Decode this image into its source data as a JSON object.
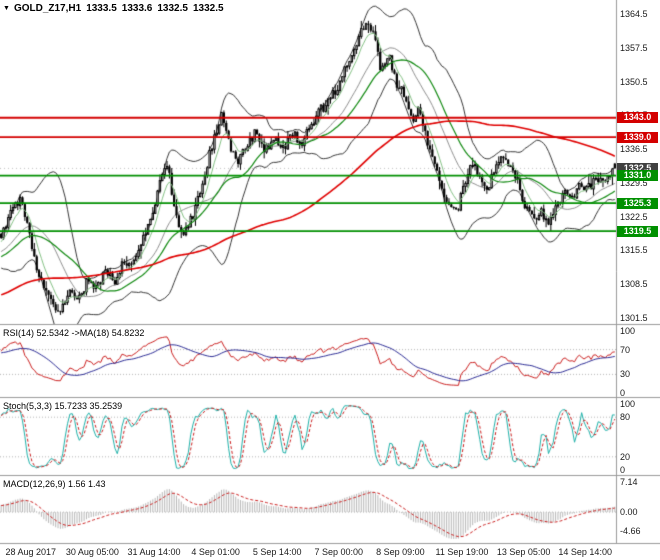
{
  "header": {
    "arrow": "▼",
    "symbol": "GOLD_Z17,H1",
    "open": "1333.5",
    "high": "1333.6",
    "low": "1332.5",
    "close": "1332.5"
  },
  "colors": {
    "background": "#ffffff",
    "bullish_candle": "#ffffff",
    "bearish_candle": "#000000",
    "candle_outline": "#000000",
    "bollinger": "#383838",
    "ma_fast_light_green": "#85c285",
    "ma_green": "#128a12",
    "ma_red": "#e00000",
    "resistance": "#d40000",
    "support": "#009000",
    "rsi_line": "#cc2020",
    "rsi_ma_line": "#2c2c96",
    "stoch_k": "#20b2aa",
    "stoch_d": "#cc2020",
    "macd_histogram": "#b8b8b8",
    "macd_signal": "#cc2020",
    "axis_text": "#1a1a1a",
    "separator": "#9a9a9a"
  },
  "chart_data": {
    "type": "candlestick",
    "title": "GOLD_Z17,H1",
    "symbol": "GOLD_Z17",
    "timeframe": "H1",
    "main_axis": {
      "min": 1301.5,
      "max": 1364.5,
      "step": 7.0,
      "ticks": [
        "1364.5",
        "1357.5",
        "1350.5",
        "1343.5",
        "1336.5",
        "1329.5",
        "1322.5",
        "1315.5",
        "1308.5",
        "1301.5"
      ],
      "current_price": "1332.5"
    },
    "levels": {
      "resistance": [
        1343.0,
        1339.0
      ],
      "support": [
        1331.0,
        1325.3,
        1319.5
      ]
    },
    "last_candle": {
      "open": 1333.5,
      "high": 1333.6,
      "low": 1332.5,
      "close": 1332.5
    },
    "bars": 260,
    "warmup_bars": 130,
    "seed": 13,
    "warmup_path": [
      [
        -0.5,
        1302.0
      ],
      [
        -0.4,
        1297.0
      ],
      [
        -0.325,
        1304.0
      ],
      [
        -0.25,
        1300.0
      ],
      [
        -0.175,
        1308.0
      ],
      [
        -0.1,
        1312.0
      ],
      [
        -0.02,
        1316.0
      ]
    ],
    "price_path": [
      [
        0.0,
        1318.5
      ],
      [
        0.015,
        1323.0
      ],
      [
        0.03,
        1326.0
      ],
      [
        0.045,
        1320.0
      ],
      [
        0.055,
        1313.0
      ],
      [
        0.07,
        1307.0
      ],
      [
        0.085,
        1304.5
      ],
      [
        0.095,
        1303.0
      ],
      [
        0.11,
        1306.5
      ],
      [
        0.125,
        1305.0
      ],
      [
        0.14,
        1309.0
      ],
      [
        0.155,
        1307.5
      ],
      [
        0.17,
        1311.0
      ],
      [
        0.185,
        1309.0
      ],
      [
        0.2,
        1313.0
      ],
      [
        0.215,
        1312.0
      ],
      [
        0.23,
        1318.0
      ],
      [
        0.245,
        1323.0
      ],
      [
        0.26,
        1330.0
      ],
      [
        0.27,
        1334.0
      ],
      [
        0.28,
        1326.0
      ],
      [
        0.29,
        1321.0
      ],
      [
        0.3,
        1319.0
      ],
      [
        0.315,
        1323.5
      ],
      [
        0.33,
        1330.0
      ],
      [
        0.345,
        1338.0
      ],
      [
        0.36,
        1343.5
      ],
      [
        0.372,
        1337.0
      ],
      [
        0.385,
        1333.5
      ],
      [
        0.4,
        1337.5
      ],
      [
        0.415,
        1340.0
      ],
      [
        0.43,
        1336.0
      ],
      [
        0.445,
        1338.5
      ],
      [
        0.46,
        1336.5
      ],
      [
        0.475,
        1339.5
      ],
      [
        0.49,
        1338.0
      ],
      [
        0.505,
        1341.5
      ],
      [
        0.52,
        1344.5
      ],
      [
        0.535,
        1346.5
      ],
      [
        0.55,
        1350.0
      ],
      [
        0.565,
        1354.0
      ],
      [
        0.58,
        1359.0
      ],
      [
        0.596,
        1363.0
      ],
      [
        0.608,
        1359.5
      ],
      [
        0.62,
        1352.5
      ],
      [
        0.632,
        1356.0
      ],
      [
        0.645,
        1350.0
      ],
      [
        0.657,
        1347.5
      ],
      [
        0.668,
        1342.5
      ],
      [
        0.68,
        1344.5
      ],
      [
        0.692,
        1339.0
      ],
      [
        0.705,
        1334.0
      ],
      [
        0.718,
        1328.5
      ],
      [
        0.73,
        1325.5
      ],
      [
        0.742,
        1323.5
      ],
      [
        0.755,
        1329.0
      ],
      [
        0.768,
        1333.5
      ],
      [
        0.78,
        1331.0
      ],
      [
        0.792,
        1328.0
      ],
      [
        0.805,
        1332.5
      ],
      [
        0.818,
        1334.5
      ],
      [
        0.83,
        1333.0
      ],
      [
        0.842,
        1329.5
      ],
      [
        0.855,
        1324.0
      ],
      [
        0.868,
        1321.5
      ],
      [
        0.88,
        1323.5
      ],
      [
        0.892,
        1321.0
      ],
      [
        0.905,
        1324.5
      ],
      [
        0.918,
        1327.5
      ],
      [
        0.93,
        1326.0
      ],
      [
        0.942,
        1329.5
      ],
      [
        0.955,
        1328.0
      ],
      [
        0.968,
        1330.5
      ],
      [
        0.98,
        1329.5
      ],
      [
        0.99,
        1331.5
      ],
      [
        1.0,
        1332.5
      ]
    ],
    "overlays": {
      "bollinger_period": 20,
      "bollinger_dev": 2,
      "ma_red_period": 110,
      "ma_green_period": 30,
      "ma_light_period": 7
    },
    "indicators": {
      "rsi": {
        "label": "RSI(14) 52.5342 ->MA(18) 54.8232",
        "period": 14,
        "ma_period": 18,
        "value": 52.5342,
        "ma_value": 54.8232,
        "levels": [
          70,
          30
        ],
        "range": [
          0,
          100
        ],
        "ticks": [
          "100",
          "70",
          "30",
          "0"
        ]
      },
      "stoch": {
        "label": "Stoch(5,3,3) 15.7233 35.2539",
        "k_period": 5,
        "d_period": 3,
        "slowing": 3,
        "value_k": 15.7233,
        "value_d": 35.2539,
        "levels": [
          80,
          20
        ],
        "range": [
          0,
          100
        ],
        "ticks": [
          "100",
          "80",
          "20",
          "0"
        ]
      },
      "macd": {
        "label": "MACD(12,26,9) 1.56 1.43",
        "fast": 12,
        "slow": 26,
        "signal": 9,
        "value": 1.56,
        "signal_value": 1.43,
        "ticks": [
          {
            "text": "7.14",
            "value": 7.14
          },
          {
            "text": "0.00",
            "value": 0.0
          },
          {
            "text": "-4.66",
            "value": -4.66
          }
        ]
      }
    },
    "time_labels": [
      "28 Aug 2017",
      "30 Aug 05:00",
      "31 Aug 14:00",
      "4 Sep 01:00",
      "5 Sep 14:00",
      "7 Sep 00:00",
      "8 Sep 09:00",
      "11 Sep 19:00",
      "13 Sep 05:00",
      "14 Sep 14:00"
    ]
  }
}
